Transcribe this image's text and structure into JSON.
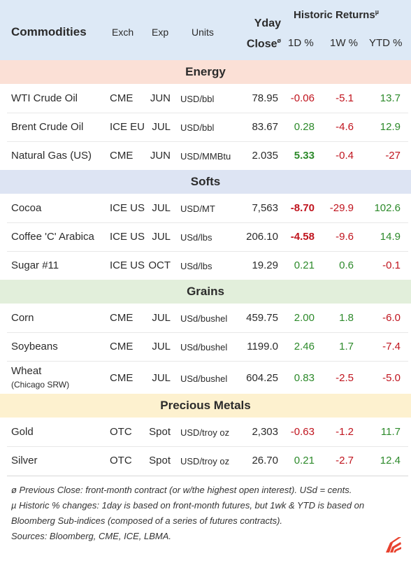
{
  "header": {
    "commodities": "Commodities",
    "exch": "Exch",
    "exp": "Exp",
    "units": "Units",
    "yday": "Yday",
    "close": "Close",
    "close_sup": "ø",
    "historic": "Historic Returns",
    "historic_sup": "µ",
    "d1": "1D %",
    "w1": "1W %",
    "ytd": "YTD %"
  },
  "sections": {
    "energy": "Energy",
    "softs": "Softs",
    "grains": "Grains",
    "metals": "Precious Metals"
  },
  "colors": {
    "header_bg": "#dde9f6",
    "energy_bg": "#fbe0d6",
    "softs_bg": "#dde4f3",
    "grains_bg": "#e2efdb",
    "metals_bg": "#fdf1cf",
    "negative": "#c0141e",
    "positive": "#2d8a2b"
  },
  "rows": {
    "wti": {
      "name": "WTI Crude Oil",
      "exch": "CME",
      "exp": "JUN",
      "units": "USD/bbl",
      "close": "78.95",
      "d1": "-0.06",
      "w1": "-5.1",
      "ytd": "13.7"
    },
    "brent": {
      "name": "Brent Crude Oil",
      "exch": "ICE EU",
      "exp": "JUL",
      "units": "USD/bbl",
      "close": "83.67",
      "d1": "0.28",
      "w1": "-4.6",
      "ytd": "12.9"
    },
    "natgas": {
      "name": "Natural Gas (US)",
      "exch": "CME",
      "exp": "JUN",
      "units": "USD/MMBtu",
      "close": "2.035",
      "d1": "5.33",
      "w1": "-0.4",
      "ytd": "-27"
    },
    "cocoa": {
      "name": "Cocoa",
      "exch": "ICE US",
      "exp": "JUL",
      "units": "USD/MT",
      "close": "7,563",
      "d1": "-8.70",
      "w1": "-29.9",
      "ytd": "102.6"
    },
    "coffee": {
      "name": "Coffee 'C' Arabica",
      "exch": "ICE US",
      "exp": "JUL",
      "units": "USd/lbs",
      "close": "206.10",
      "d1": "-4.58",
      "w1": "-9.6",
      "ytd": "14.9"
    },
    "sugar": {
      "name": "Sugar #11",
      "exch": "ICE US",
      "exp": "OCT",
      "units": "USd/lbs",
      "close": "19.29",
      "d1": "0.21",
      "w1": "0.6",
      "ytd": "-0.1"
    },
    "corn": {
      "name": "Corn",
      "exch": "CME",
      "exp": "JUL",
      "units": "USd/bushel",
      "close": "459.75",
      "d1": "2.00",
      "w1": "1.8",
      "ytd": "-6.0"
    },
    "soy": {
      "name": "Soybeans",
      "exch": "CME",
      "exp": "JUL",
      "units": "USd/bushel",
      "close": "1199.0",
      "d1": "2.46",
      "w1": "1.7",
      "ytd": "-7.4"
    },
    "wheat": {
      "name": "Wheat",
      "sub": "(Chicago SRW)",
      "exch": "CME",
      "exp": "JUL",
      "units": "USd/bushel",
      "close": "604.25",
      "d1": "0.83",
      "w1": "-2.5",
      "ytd": "-5.0"
    },
    "gold": {
      "name": "Gold",
      "exch": "OTC",
      "exp": "Spot",
      "units": "USD/troy oz",
      "close": "2,303",
      "d1": "-0.63",
      "w1": "-1.2",
      "ytd": "11.7"
    },
    "silver": {
      "name": "Silver",
      "exch": "OTC",
      "exp": "Spot",
      "units": "USD/troy oz",
      "close": "26.70",
      "d1": "0.21",
      "w1": "-2.7",
      "ytd": "12.4"
    }
  },
  "footer": {
    "note1": "ø Previous Close: front-month contract (or w/the highest open interest). USd = cents.",
    "note2": "µ Historic % changes: 1day is based on front-month futures, but 1wk & YTD is based on Bloomberg Sub-indices (composed of a series of futures contracts).",
    "note3": "Sources: Bloomberg, CME, ICE, LBMA."
  },
  "logo_icon": "red-stripes-logo-icon"
}
